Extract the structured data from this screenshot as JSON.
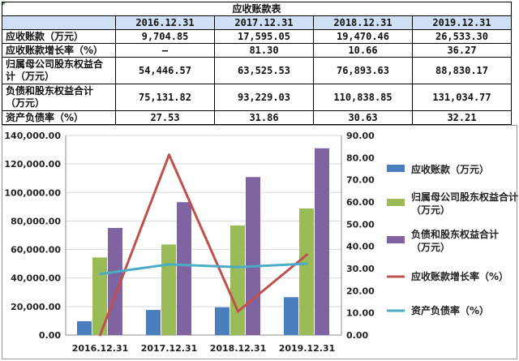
{
  "table": {
    "title": "应收账款表",
    "headers": [
      "",
      "2016.12.31",
      "2017.12.31",
      "2018.12.31",
      "2019.12.31"
    ],
    "rows": [
      {
        "label": "应收账款（万元）",
        "values": [
          "9,704.85",
          "17,595.05",
          "19,470.46",
          "26,533.30"
        ]
      },
      {
        "label": "应收账款增长率（%）",
        "values": [
          "—",
          "81.30",
          "10.66",
          "36.27"
        ]
      },
      {
        "label": "归属母公司股东权益合计（万元）",
        "values": [
          "54,446.57",
          "63,525.53",
          "76,893.63",
          "88,830.17"
        ]
      },
      {
        "label": "负债和股东权益合计（万元）",
        "values": [
          "75,131.82",
          "93,229.03",
          "110,838.85",
          "131,034.77"
        ]
      },
      {
        "label": "资产负债率（%）",
        "values": [
          "27.53",
          "31.86",
          "30.63",
          "32.21"
        ]
      }
    ]
  },
  "chart_data": {
    "type": "bar",
    "categories": [
      "2016.12.31",
      "2017.12.31",
      "2018.12.31",
      "2019.12.31"
    ],
    "ylim": [
      0,
      140000
    ],
    "y_ticks": [
      "0.00",
      "20,000.00",
      "40,000.00",
      "60,000.00",
      "80,000.00",
      "100,000.00",
      "120,000.00",
      "140,000.00"
    ],
    "y2lim": [
      0,
      90
    ],
    "y2_ticks": [
      "0.00",
      "10.00",
      "20.00",
      "30.00",
      "40.00",
      "50.00",
      "60.00",
      "70.00",
      "80.00",
      "90.00"
    ],
    "grid": true,
    "legend_position": "right",
    "bar_series": [
      {
        "name": "应收账款（万元）",
        "color": "#4a7ebf",
        "values": [
          9704.85,
          17595.05,
          19470.46,
          26533.3
        ]
      },
      {
        "name": "归属母公司股东权益合计（万元）",
        "color": "#9bbb59",
        "values": [
          54446.57,
          63525.53,
          76893.63,
          88830.17
        ]
      },
      {
        "name": "负债和股东权益合计（万元）",
        "color": "#8064a2",
        "values": [
          75131.82,
          93229.03,
          110838.85,
          131034.77
        ]
      }
    ],
    "line_series": [
      {
        "name": "应收账款增长率（%）",
        "color": "#c0504d",
        "axis": "right",
        "values": [
          0,
          81.3,
          10.66,
          36.27
        ]
      },
      {
        "name": "资产负债率（%）",
        "color": "#4bacc6",
        "axis": "right",
        "values": [
          27.53,
          31.86,
          30.63,
          32.21
        ]
      }
    ]
  }
}
